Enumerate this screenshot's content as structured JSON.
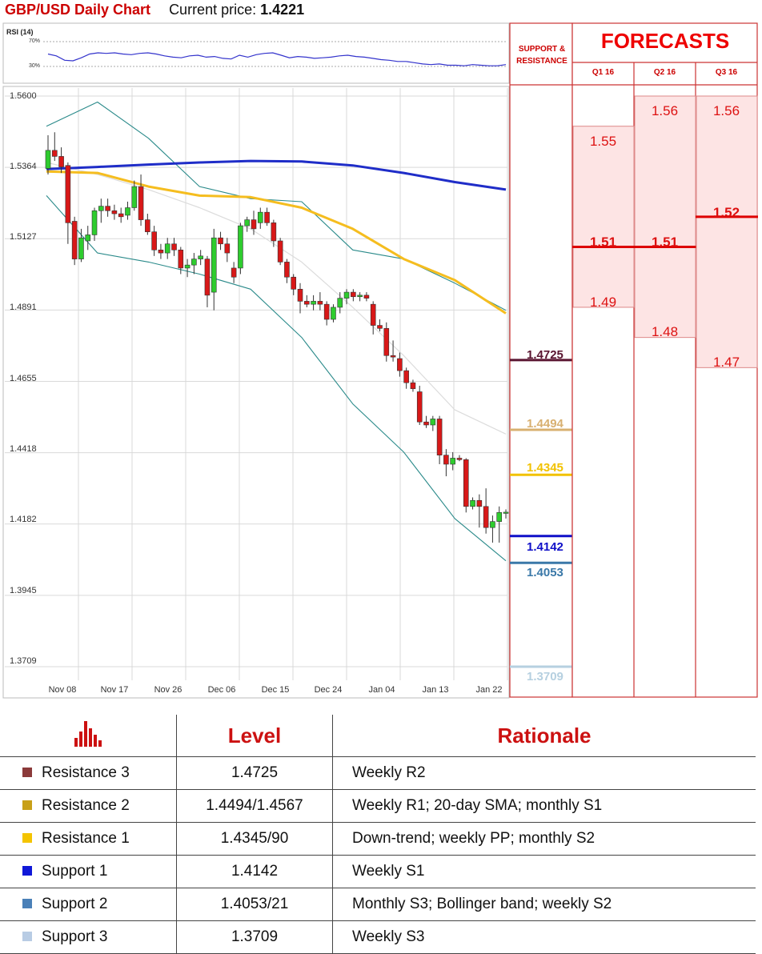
{
  "header": {
    "title": "GBP/USD Daily Chart",
    "price_label": "Current price:",
    "price_value": "1.4221"
  },
  "rsi": {
    "label": "RSI (14)",
    "levels": [
      "70%",
      "30%"
    ],
    "values": [
      50,
      47,
      40,
      39,
      44,
      50,
      52,
      51,
      52,
      50,
      49,
      51,
      52,
      50,
      47,
      45,
      44,
      47,
      48,
      45,
      46,
      43,
      42,
      48,
      45,
      49,
      51,
      52,
      48,
      44,
      46,
      45,
      43,
      44,
      45,
      47,
      48,
      46,
      45,
      43,
      41,
      40,
      38,
      38,
      36,
      34,
      33,
      34,
      32,
      32,
      31,
      33,
      32,
      31,
      31,
      33
    ]
  },
  "chart_data": {
    "type": "candlestick",
    "title": "GBP/USD Daily Chart",
    "ylim": [
      1.3709,
      1.56
    ],
    "y_ticks": [
      "1.5600",
      "1.5364",
      "1.5127",
      "1.4891",
      "1.4655",
      "1.4418",
      "1.4182",
      "1.3945",
      "1.3709"
    ],
    "x_ticks": [
      "Nov 08",
      "Nov 17",
      "Nov 26",
      "Dec 06",
      "Dec 15",
      "Dec 24",
      "Jan 04",
      "Jan 13",
      "Jan 22"
    ],
    "candles": [
      {
        "o": 1.536,
        "h": 1.547,
        "l": 1.534,
        "c": 1.542
      },
      {
        "o": 1.542,
        "h": 1.548,
        "l": 1.5385,
        "c": 1.54
      },
      {
        "o": 1.54,
        "h": 1.543,
        "l": 1.5345,
        "c": 1.5365
      },
      {
        "o": 1.537,
        "h": 1.538,
        "l": 1.511,
        "c": 1.518
      },
      {
        "o": 1.5185,
        "h": 1.52,
        "l": 1.504,
        "c": 1.506
      },
      {
        "o": 1.506,
        "h": 1.516,
        "l": 1.505,
        "c": 1.513
      },
      {
        "o": 1.512,
        "h": 1.517,
        "l": 1.509,
        "c": 1.514
      },
      {
        "o": 1.514,
        "h": 1.523,
        "l": 1.512,
        "c": 1.522
      },
      {
        "o": 1.522,
        "h": 1.526,
        "l": 1.518,
        "c": 1.5235
      },
      {
        "o": 1.5235,
        "h": 1.526,
        "l": 1.52,
        "c": 1.522
      },
      {
        "o": 1.522,
        "h": 1.524,
        "l": 1.519,
        "c": 1.521
      },
      {
        "o": 1.521,
        "h": 1.523,
        "l": 1.518,
        "c": 1.52
      },
      {
        "o": 1.5205,
        "h": 1.525,
        "l": 1.519,
        "c": 1.523
      },
      {
        "o": 1.523,
        "h": 1.532,
        "l": 1.522,
        "c": 1.53
      },
      {
        "o": 1.53,
        "h": 1.534,
        "l": 1.517,
        "c": 1.519
      },
      {
        "o": 1.519,
        "h": 1.521,
        "l": 1.514,
        "c": 1.515
      },
      {
        "o": 1.515,
        "h": 1.517,
        "l": 1.507,
        "c": 1.509
      },
      {
        "o": 1.509,
        "h": 1.511,
        "l": 1.506,
        "c": 1.508
      },
      {
        "o": 1.508,
        "h": 1.513,
        "l": 1.506,
        "c": 1.511
      },
      {
        "o": 1.511,
        "h": 1.513,
        "l": 1.507,
        "c": 1.509
      },
      {
        "o": 1.509,
        "h": 1.51,
        "l": 1.501,
        "c": 1.503
      },
      {
        "o": 1.503,
        "h": 1.506,
        "l": 1.5,
        "c": 1.504
      },
      {
        "o": 1.504,
        "h": 1.508,
        "l": 1.501,
        "c": 1.506
      },
      {
        "o": 1.506,
        "h": 1.509,
        "l": 1.504,
        "c": 1.507
      },
      {
        "o": 1.506,
        "h": 1.507,
        "l": 1.49,
        "c": 1.494
      },
      {
        "o": 1.495,
        "h": 1.516,
        "l": 1.489,
        "c": 1.513
      },
      {
        "o": 1.513,
        "h": 1.515,
        "l": 1.509,
        "c": 1.511
      },
      {
        "o": 1.511,
        "h": 1.513,
        "l": 1.505,
        "c": 1.508
      },
      {
        "o": 1.503,
        "h": 1.505,
        "l": 1.498,
        "c": 1.5
      },
      {
        "o": 1.503,
        "h": 1.518,
        "l": 1.501,
        "c": 1.517
      },
      {
        "o": 1.517,
        "h": 1.52,
        "l": 1.515,
        "c": 1.519
      },
      {
        "o": 1.519,
        "h": 1.522,
        "l": 1.514,
        "c": 1.516
      },
      {
        "o": 1.518,
        "h": 1.523,
        "l": 1.516,
        "c": 1.5215
      },
      {
        "o": 1.5215,
        "h": 1.523,
        "l": 1.517,
        "c": 1.518
      },
      {
        "o": 1.518,
        "h": 1.519,
        "l": 1.51,
        "c": 1.512
      },
      {
        "o": 1.512,
        "h": 1.513,
        "l": 1.504,
        "c": 1.505
      },
      {
        "o": 1.505,
        "h": 1.506,
        "l": 1.498,
        "c": 1.5
      },
      {
        "o": 1.5,
        "h": 1.501,
        "l": 1.494,
        "c": 1.496
      },
      {
        "o": 1.496,
        "h": 1.498,
        "l": 1.488,
        "c": 1.492
      },
      {
        "o": 1.492,
        "h": 1.494,
        "l": 1.49,
        "c": 1.491
      },
      {
        "o": 1.491,
        "h": 1.494,
        "l": 1.489,
        "c": 1.492
      },
      {
        "o": 1.492,
        "h": 1.495,
        "l": 1.489,
        "c": 1.491
      },
      {
        "o": 1.491,
        "h": 1.492,
        "l": 1.484,
        "c": 1.486
      },
      {
        "o": 1.486,
        "h": 1.491,
        "l": 1.485,
        "c": 1.49
      },
      {
        "o": 1.49,
        "h": 1.495,
        "l": 1.488,
        "c": 1.493
      },
      {
        "o": 1.493,
        "h": 1.496,
        "l": 1.491,
        "c": 1.495
      },
      {
        "o": 1.495,
        "h": 1.496,
        "l": 1.492,
        "c": 1.4935
      },
      {
        "o": 1.4935,
        "h": 1.495,
        "l": 1.492,
        "c": 1.494
      },
      {
        "o": 1.494,
        "h": 1.495,
        "l": 1.492,
        "c": 1.493
      },
      {
        "o": 1.491,
        "h": 1.492,
        "l": 1.481,
        "c": 1.484
      },
      {
        "o": 1.484,
        "h": 1.486,
        "l": 1.482,
        "c": 1.483
      },
      {
        "o": 1.483,
        "h": 1.485,
        "l": 1.472,
        "c": 1.474
      },
      {
        "o": 1.474,
        "h": 1.479,
        "l": 1.472,
        "c": 1.4735
      },
      {
        "o": 1.473,
        "h": 1.475,
        "l": 1.467,
        "c": 1.469
      },
      {
        "o": 1.469,
        "h": 1.47,
        "l": 1.463,
        "c": 1.465
      },
      {
        "o": 1.465,
        "h": 1.466,
        "l": 1.462,
        "c": 1.463
      },
      {
        "o": 1.462,
        "h": 1.464,
        "l": 1.451,
        "c": 1.452
      },
      {
        "o": 1.452,
        "h": 1.454,
        "l": 1.45,
        "c": 1.451
      },
      {
        "o": 1.451,
        "h": 1.454,
        "l": 1.449,
        "c": 1.453
      },
      {
        "o": 1.453,
        "h": 1.454,
        "l": 1.438,
        "c": 1.441
      },
      {
        "o": 1.441,
        "h": 1.443,
        "l": 1.434,
        "c": 1.438
      },
      {
        "o": 1.438,
        "h": 1.442,
        "l": 1.436,
        "c": 1.44
      },
      {
        "o": 1.44,
        "h": 1.441,
        "l": 1.439,
        "c": 1.4395
      },
      {
        "o": 1.4395,
        "h": 1.44,
        "l": 1.422,
        "c": 1.424
      },
      {
        "o": 1.424,
        "h": 1.427,
        "l": 1.423,
        "c": 1.426
      },
      {
        "o": 1.426,
        "h": 1.428,
        "l": 1.417,
        "c": 1.424
      },
      {
        "o": 1.424,
        "h": 1.43,
        "l": 1.415,
        "c": 1.417
      },
      {
        "o": 1.417,
        "h": 1.421,
        "l": 1.412,
        "c": 1.419
      },
      {
        "o": 1.419,
        "h": 1.424,
        "l": 1.412,
        "c": 1.422
      },
      {
        "o": 1.422,
        "h": 1.423,
        "l": 1.42,
        "c": 1.4221
      }
    ],
    "sma_200": [
      1.5358,
      1.5365,
      1.5373,
      1.538,
      1.5385,
      1.5383,
      1.537,
      1.5345,
      1.5315,
      1.529
    ],
    "sma_50": [
      1.535,
      1.5345,
      1.53,
      1.527,
      1.5265,
      1.523,
      1.516,
      1.506,
      1.499,
      1.488
    ],
    "bollinger_upper": [
      1.55,
      1.558,
      1.546,
      1.53,
      1.526,
      1.525,
      1.509,
      1.506,
      1.498,
      1.489
    ],
    "bollinger_middle": [
      1.538,
      1.534,
      1.529,
      1.523,
      1.516,
      1.505,
      1.49,
      1.474,
      1.456,
      1.448
    ],
    "bollinger_lower": [
      1.527,
      1.508,
      1.505,
      1.501,
      1.496,
      1.48,
      1.458,
      1.442,
      1.42,
      1.406
    ]
  },
  "support_resistance": {
    "title_line1": "SUPPORT &",
    "title_line2": "RESISTANCE",
    "levels": [
      {
        "label": "1.4725",
        "value": 1.4725,
        "color": "#5a1530"
      },
      {
        "label": "1.4494",
        "value": 1.4494,
        "color": "#d8b070"
      },
      {
        "label": "1.4345",
        "value": 1.4345,
        "color": "#f2c200"
      },
      {
        "label": "1.4142",
        "value": 1.4142,
        "color": "#1010c8"
      },
      {
        "label": "1.4053",
        "value": 1.4053,
        "color": "#3a78a8"
      },
      {
        "label": "1.3709",
        "value": 1.3709,
        "color": "#b6d0e0"
      }
    ]
  },
  "forecasts": {
    "title": "FORECASTS",
    "quarters": [
      {
        "label": "Q1 16",
        "high": "1.55",
        "mid": "1.51",
        "low": "1.49",
        "high_v": 1.55,
        "mid_v": 1.51,
        "low_v": 1.49
      },
      {
        "label": "Q2 16",
        "high": "1.56",
        "mid": "1.51",
        "low": "1.48",
        "high_v": 1.56,
        "mid_v": 1.51,
        "low_v": 1.48
      },
      {
        "label": "Q3 16",
        "high": "1.56",
        "mid": "1.52",
        "low": "1.47",
        "high_v": 1.56,
        "mid_v": 1.52,
        "low_v": 1.47
      }
    ]
  },
  "table": {
    "headers": {
      "level": "Level",
      "rationale": "Rationale"
    },
    "rows": [
      {
        "name": "Resistance 3",
        "level": "1.4725",
        "rationale": "Weekly R2",
        "color": "#8b3a3a"
      },
      {
        "name": "Resistance 2",
        "level": "1.4494/1.4567",
        "rationale": "Weekly R1; 20-day SMA; monthly S1",
        "color": "#c8a018"
      },
      {
        "name": "Resistance 1",
        "level": "1.4345/90",
        "rationale": "Down-trend; weekly PP; monthly S2",
        "color": "#f4c400"
      },
      {
        "name": "Support 1",
        "level": "1.4142",
        "rationale": "Weekly S1",
        "color": "#1018d8"
      },
      {
        "name": "Support 2",
        "level": "1.4053/21",
        "rationale": "Monthly S3; Bollinger band; weekly S2",
        "color": "#4a80b8"
      },
      {
        "name": "Support 3",
        "level": "1.3709",
        "rationale": "Weekly S3",
        "color": "#b8cce4"
      }
    ]
  },
  "colors": {
    "accent": "#cc0000",
    "candle_up": "#2ecc2e",
    "candle_down": "#d81818",
    "sma_200": "#1f2dc8",
    "sma_50": "#f5bd1f",
    "bollinger": "#2a8a8a",
    "forecast_fill": "#fde4e4"
  }
}
